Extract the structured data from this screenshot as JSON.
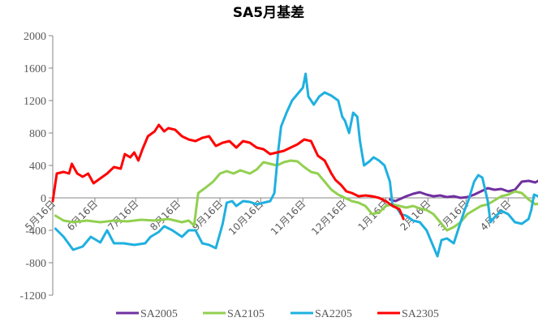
{
  "chart_data": {
    "type": "line",
    "title": "SA5月基差",
    "xlabel": "",
    "ylabel": "",
    "ylim": [
      -1200,
      2000
    ],
    "yticks": [
      2000,
      1600,
      1200,
      800,
      400,
      0,
      -400,
      -800,
      -1200
    ],
    "x_day_range": [
      0,
      348
    ],
    "x_ticks": [
      {
        "label": "5月16日",
        "day": 0
      },
      {
        "label": "6月16日",
        "day": 31
      },
      {
        "label": "7月16日",
        "day": 61
      },
      {
        "label": "8月16日",
        "day": 92
      },
      {
        "label": "9月16日",
        "day": 123
      },
      {
        "label": "10月16日",
        "day": 153
      },
      {
        "label": "11月16日",
        "day": 184
      },
      {
        "label": "12月16日",
        "day": 214
      },
      {
        "label": "1月16日",
        "day": 245
      },
      {
        "label": "2月16日",
        "day": 276
      },
      {
        "label": "3月16日",
        "day": 304
      },
      {
        "label": "4月16日",
        "day": 335
      }
    ],
    "grid": false,
    "legend": "bottom",
    "series": [
      {
        "name": "SA2005",
        "color": "#7030A0",
        "points": [
          [
            248,
            -20
          ],
          [
            252,
            -40
          ],
          [
            256,
            -10
          ],
          [
            260,
            20
          ],
          [
            265,
            50
          ],
          [
            270,
            70
          ],
          [
            275,
            40
          ],
          [
            280,
            20
          ],
          [
            285,
            30
          ],
          [
            290,
            10
          ],
          [
            295,
            20
          ],
          [
            300,
            0
          ],
          [
            305,
            10
          ],
          [
            310,
            40
          ],
          [
            315,
            80
          ],
          [
            320,
            120
          ],
          [
            325,
            100
          ],
          [
            330,
            110
          ],
          [
            335,
            80
          ],
          [
            340,
            100
          ],
          [
            345,
            200
          ],
          [
            350,
            210
          ],
          [
            355,
            190
          ],
          [
            358,
            220
          ],
          [
            360,
            150
          ]
        ]
      },
      {
        "name": "SA2105",
        "color": "#92D050",
        "points": [
          [
            2,
            -220
          ],
          [
            8,
            -280
          ],
          [
            15,
            -300
          ],
          [
            25,
            -280
          ],
          [
            35,
            -300
          ],
          [
            45,
            -280
          ],
          [
            55,
            -290
          ],
          [
            65,
            -270
          ],
          [
            75,
            -280
          ],
          [
            85,
            -260
          ],
          [
            95,
            -300
          ],
          [
            100,
            -280
          ],
          [
            104,
            -340
          ],
          [
            107,
            60
          ],
          [
            112,
            120
          ],
          [
            118,
            200
          ],
          [
            123,
            300
          ],
          [
            128,
            330
          ],
          [
            133,
            300
          ],
          [
            138,
            340
          ],
          [
            145,
            300
          ],
          [
            150,
            350
          ],
          [
            155,
            440
          ],
          [
            160,
            420
          ],
          [
            165,
            400
          ],
          [
            170,
            440
          ],
          [
            175,
            460
          ],
          [
            180,
            450
          ],
          [
            185,
            380
          ],
          [
            190,
            320
          ],
          [
            195,
            300
          ],
          [
            200,
            200
          ],
          [
            205,
            100
          ],
          [
            210,
            40
          ],
          [
            215,
            0
          ],
          [
            220,
            -40
          ],
          [
            225,
            -60
          ],
          [
            230,
            -100
          ],
          [
            235,
            -200
          ],
          [
            240,
            -180
          ],
          [
            245,
            -100
          ],
          [
            250,
            -80
          ],
          [
            255,
            -100
          ],
          [
            260,
            -120
          ],
          [
            265,
            -100
          ],
          [
            270,
            -130
          ],
          [
            275,
            -150
          ],
          [
            280,
            -200
          ],
          [
            285,
            -300
          ],
          [
            290,
            -400
          ],
          [
            295,
            -360
          ],
          [
            300,
            -300
          ],
          [
            305,
            -200
          ],
          [
            310,
            -150
          ],
          [
            315,
            -100
          ],
          [
            320,
            -80
          ],
          [
            325,
            -30
          ],
          [
            330,
            20
          ],
          [
            335,
            40
          ],
          [
            340,
            80
          ],
          [
            345,
            60
          ],
          [
            350,
            -20
          ],
          [
            355,
            -80
          ],
          [
            360,
            -60
          ]
        ]
      },
      {
        "name": "SA2205",
        "color": "#1FB0E0",
        "points": [
          [
            2,
            -380
          ],
          [
            8,
            -480
          ],
          [
            15,
            -640
          ],
          [
            22,
            -600
          ],
          [
            28,
            -480
          ],
          [
            35,
            -550
          ],
          [
            40,
            -400
          ],
          [
            45,
            -560
          ],
          [
            52,
            -560
          ],
          [
            60,
            -580
          ],
          [
            68,
            -560
          ],
          [
            72,
            -480
          ],
          [
            78,
            -420
          ],
          [
            82,
            -350
          ],
          [
            88,
            -400
          ],
          [
            95,
            -480
          ],
          [
            100,
            -400
          ],
          [
            105,
            -400
          ],
          [
            110,
            -560
          ],
          [
            115,
            -580
          ],
          [
            120,
            -620
          ],
          [
            125,
            -320
          ],
          [
            128,
            -60
          ],
          [
            132,
            -40
          ],
          [
            135,
            -100
          ],
          [
            140,
            -40
          ],
          [
            145,
            -50
          ],
          [
            150,
            -80
          ],
          [
            155,
            -60
          ],
          [
            160,
            -40
          ],
          [
            163,
            60
          ],
          [
            166,
            600
          ],
          [
            168,
            880
          ],
          [
            172,
            1050
          ],
          [
            176,
            1200
          ],
          [
            180,
            1280
          ],
          [
            184,
            1360
          ],
          [
            186,
            1530
          ],
          [
            188,
            1250
          ],
          [
            192,
            1150
          ],
          [
            196,
            1250
          ],
          [
            200,
            1300
          ],
          [
            205,
            1260
          ],
          [
            210,
            1200
          ],
          [
            213,
            1000
          ],
          [
            215,
            950
          ],
          [
            218,
            800
          ],
          [
            221,
            1050
          ],
          [
            224,
            1000
          ],
          [
            226,
            700
          ],
          [
            229,
            400
          ],
          [
            233,
            450
          ],
          [
            236,
            500
          ],
          [
            240,
            460
          ],
          [
            244,
            400
          ],
          [
            248,
            200
          ],
          [
            250,
            -100
          ],
          [
            253,
            -120
          ],
          [
            256,
            -200
          ],
          [
            260,
            -220
          ],
          [
            265,
            -280
          ],
          [
            270,
            -300
          ],
          [
            275,
            -400
          ],
          [
            280,
            -600
          ],
          [
            283,
            -720
          ],
          [
            286,
            -520
          ],
          [
            290,
            -500
          ],
          [
            295,
            -560
          ],
          [
            300,
            -300
          ],
          [
            303,
            -150
          ],
          [
            306,
            -20
          ],
          [
            310,
            200
          ],
          [
            313,
            280
          ],
          [
            316,
            250
          ],
          [
            320,
            -40
          ],
          [
            322,
            -300
          ],
          [
            325,
            -240
          ],
          [
            330,
            -160
          ],
          [
            335,
            -200
          ],
          [
            340,
            -300
          ],
          [
            345,
            -320
          ],
          [
            350,
            -260
          ],
          [
            352,
            -150
          ],
          [
            354,
            40
          ],
          [
            357,
            20
          ],
          [
            360,
            -60
          ]
        ]
      },
      {
        "name": "SA2305",
        "color": "#FF0000",
        "points": [
          [
            0,
            -40
          ],
          [
            3,
            300
          ],
          [
            8,
            320
          ],
          [
            12,
            300
          ],
          [
            14,
            420
          ],
          [
            18,
            300
          ],
          [
            22,
            260
          ],
          [
            26,
            300
          ],
          [
            30,
            180
          ],
          [
            35,
            240
          ],
          [
            40,
            300
          ],
          [
            45,
            380
          ],
          [
            50,
            360
          ],
          [
            53,
            540
          ],
          [
            57,
            500
          ],
          [
            60,
            560
          ],
          [
            63,
            460
          ],
          [
            66,
            600
          ],
          [
            70,
            760
          ],
          [
            75,
            820
          ],
          [
            78,
            900
          ],
          [
            82,
            820
          ],
          [
            85,
            860
          ],
          [
            90,
            840
          ],
          [
            95,
            760
          ],
          [
            100,
            720
          ],
          [
            105,
            700
          ],
          [
            110,
            740
          ],
          [
            115,
            760
          ],
          [
            120,
            640
          ],
          [
            125,
            680
          ],
          [
            130,
            700
          ],
          [
            135,
            620
          ],
          [
            140,
            700
          ],
          [
            145,
            680
          ],
          [
            150,
            620
          ],
          [
            155,
            600
          ],
          [
            160,
            540
          ],
          [
            165,
            560
          ],
          [
            170,
            580
          ],
          [
            175,
            620
          ],
          [
            180,
            660
          ],
          [
            185,
            720
          ],
          [
            190,
            700
          ],
          [
            195,
            520
          ],
          [
            200,
            460
          ],
          [
            205,
            300
          ],
          [
            208,
            220
          ],
          [
            212,
            160
          ],
          [
            216,
            80
          ],
          [
            220,
            60
          ],
          [
            225,
            20
          ],
          [
            230,
            30
          ],
          [
            235,
            20
          ],
          [
            240,
            0
          ],
          [
            245,
            -40
          ],
          [
            250,
            -100
          ],
          [
            255,
            -140
          ],
          [
            258,
            -260
          ]
        ]
      }
    ]
  }
}
